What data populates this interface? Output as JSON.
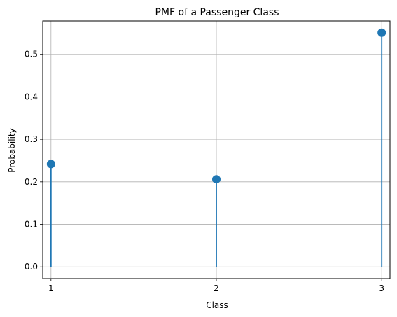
{
  "chart_data": {
    "type": "stem",
    "title": "PMF of a Passenger Class",
    "xlabel": "Class",
    "ylabel": "Probability",
    "x": [
      1,
      2,
      3
    ],
    "values": [
      0.242,
      0.206,
      0.551
    ],
    "xticks": [
      "1",
      "2",
      "3"
    ],
    "yticks": [
      "0.0",
      "0.1",
      "0.2",
      "0.3",
      "0.4",
      "0.5"
    ],
    "xlim": [
      0.95,
      3.05
    ],
    "ylim": [
      -0.0276,
      0.5786
    ],
    "grid": true,
    "colors": {
      "stem": "#1f77b4",
      "marker": "#1f77b4",
      "grid": "#b0b0b0",
      "axes": "#000000"
    }
  }
}
